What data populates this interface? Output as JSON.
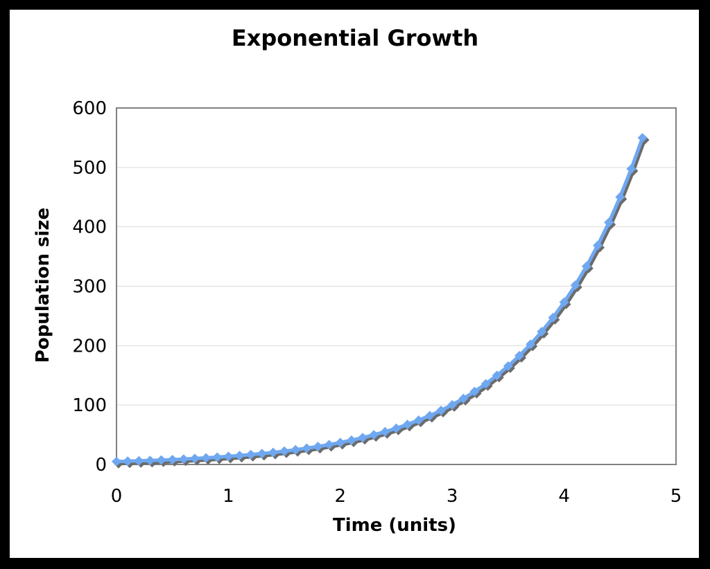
{
  "chart_data": {
    "type": "line",
    "title": "Exponential Growth",
    "xlabel": "Time (units)",
    "ylabel": "Population size",
    "xlim": [
      0,
      5
    ],
    "ylim": [
      0,
      600
    ],
    "xticks": [
      "0",
      "1",
      "2",
      "3",
      "4",
      "5"
    ],
    "yticks": [
      "0",
      "100",
      "200",
      "300",
      "400",
      "500",
      "600"
    ],
    "grid": true,
    "legend": "none",
    "marker": "diamond",
    "colors": {
      "line": "#6fa8f0",
      "shadow": "#6b6b6b",
      "grid": "#d9d9d9",
      "plot_border": "#808080"
    },
    "series": [
      {
        "x": [
          0,
          0.1,
          0.2,
          0.3,
          0.4,
          0.5,
          0.6,
          0.7,
          0.8,
          0.9,
          1.0,
          1.1,
          1.2,
          1.3,
          1.4,
          1.5,
          1.6,
          1.7,
          1.8,
          1.9,
          2.0,
          2.1,
          2.2,
          2.3,
          2.4,
          2.5,
          2.6,
          2.7,
          2.8,
          2.9,
          3.0,
          3.1,
          3.2,
          3.3,
          3.4,
          3.5,
          3.6,
          3.7,
          3.8,
          3.9,
          4.0,
          4.1,
          4.2,
          4.3,
          4.4,
          4.5,
          4.6,
          4.7
        ],
        "values": [
          5,
          5.5,
          6.1,
          6.7,
          7.5,
          8.2,
          9.1,
          10.1,
          11.1,
          12.3,
          13.6,
          15.0,
          16.6,
          18.3,
          20.3,
          22.4,
          24.8,
          27.4,
          30.2,
          33.4,
          36.9,
          40.8,
          45.1,
          49.9,
          55.1,
          60.9,
          67.3,
          74.4,
          82.2,
          90.9,
          100.4,
          111.0,
          122.7,
          135.6,
          149.9,
          165.6,
          183.0,
          202.3,
          223.6,
          247.1,
          273.0,
          301.8,
          333.5,
          368.6,
          407.3,
          450.1,
          497.5,
          549.8
        ]
      }
    ]
  }
}
